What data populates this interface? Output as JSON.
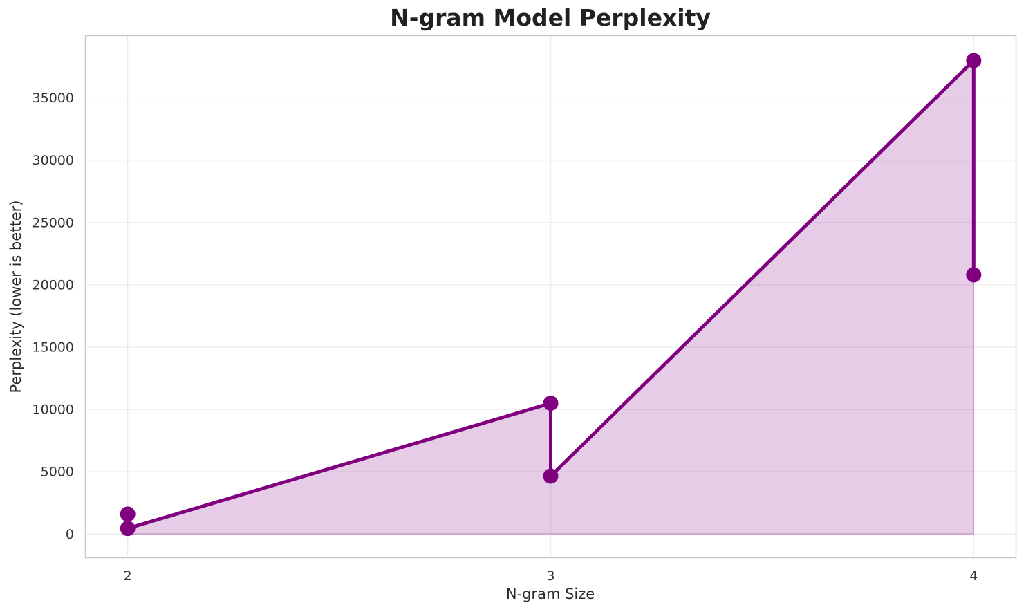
{
  "chart_data": {
    "type": "area",
    "title": "N-gram Model Perplexity",
    "xlabel": "N-gram Size",
    "ylabel": "Perplexity (lower is better)",
    "x": [
      2,
      2,
      3,
      3,
      4,
      4
    ],
    "y": [
      1600,
      450,
      10500,
      4650,
      38000,
      20800
    ],
    "xticks": [
      2,
      3,
      4
    ],
    "yticks": [
      0,
      5000,
      10000,
      15000,
      20000,
      25000,
      30000,
      35000
    ],
    "xlim": [
      1.9,
      4.1
    ],
    "ylim": [
      -1900,
      40000
    ],
    "grid": true,
    "legend": "none",
    "line_color": "#800080",
    "marker_color": "#800080",
    "fill_color": "rgba(128,0,128,0.2)",
    "fill_edge_color": "rgba(128,0,128,0.28)",
    "grid_color": "#ececec",
    "spine_color": "#c8c8c8",
    "title_color": "#212121",
    "text_color": "#2b2b2b",
    "tick_color": "#333333",
    "background": "#ffffff"
  }
}
